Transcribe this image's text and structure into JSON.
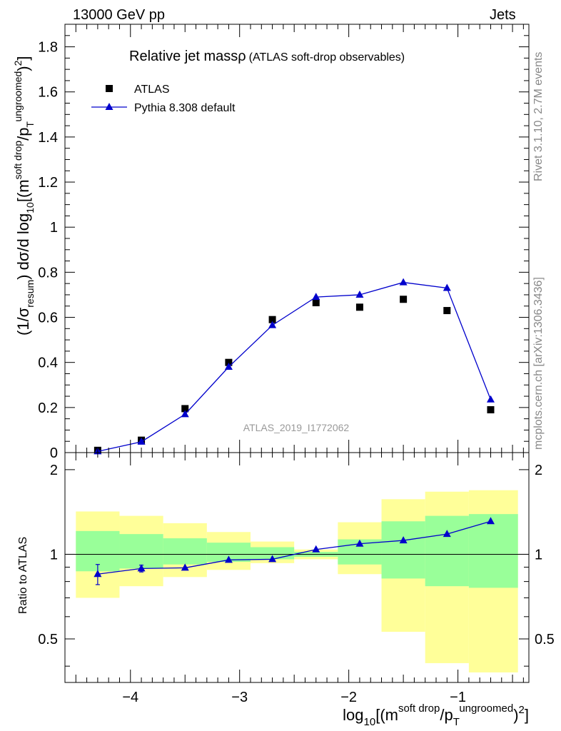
{
  "header": {
    "left": "13000 GeV pp",
    "right": "Jets"
  },
  "side_text": {
    "rivet": "Rivet 3.1.10,  2.7M events",
    "source": "mcplots.cern.ch [arXiv:1306.3436]"
  },
  "chart_data": [
    {
      "type": "line",
      "title": "Relative jet mass",
      "title_symbol": "ρ",
      "subtitle": "(ATLAS soft-drop observables)",
      "watermark": "ATLAS_2019_I1772062",
      "xlabel": "log10[(m^soft drop/p_T^ungroomed)^2]",
      "ylabel": "(1/σ_resum) dσ/d log10[(m^soft drop/p_T^ungroomed)^2]",
      "xlim": [
        -4.6,
        -0.35
      ],
      "ylim": [
        0,
        1.9
      ],
      "y_ticks": [
        0,
        0.2,
        0.4,
        0.6,
        0.8,
        1,
        1.2,
        1.4,
        1.6,
        1.8
      ],
      "y_tick_labels": [
        "0",
        "0.2",
        "0.4",
        "0.6",
        "0.8",
        "1",
        "1.2",
        "1.4",
        "1.6",
        "1.8"
      ],
      "legend_position": "top-left",
      "series": [
        {
          "name": "ATLAS",
          "marker": "square",
          "color": "#000000",
          "x": [
            -4.3,
            -3.9,
            -3.5,
            -3.1,
            -2.7,
            -2.3,
            -1.9,
            -1.5,
            -1.1,
            -0.7
          ],
          "y": [
            0.01,
            0.055,
            0.195,
            0.4,
            0.59,
            0.665,
            0.645,
            0.68,
            0.63,
            0.19
          ]
        },
        {
          "name": "Pythia 8.308 default",
          "marker": "triangle",
          "color": "#0000cc",
          "x": [
            -4.3,
            -3.9,
            -3.5,
            -3.1,
            -2.7,
            -2.3,
            -1.9,
            -1.5,
            -1.1,
            -0.7
          ],
          "y": [
            0.005,
            0.048,
            0.17,
            0.38,
            0.565,
            0.69,
            0.7,
            0.755,
            0.73,
            0.235
          ]
        }
      ]
    },
    {
      "type": "line",
      "ylabel": "Ratio to ATLAS",
      "xlabel": "log10[(m^soft drop/p_T^ungroomed)^2]",
      "xlim": [
        -4.6,
        -0.35
      ],
      "ylim": [
        0.35,
        2.3
      ],
      "y_ticks": [
        0.5,
        1,
        2
      ],
      "y_tick_labels": [
        "0.5",
        "1",
        "2"
      ],
      "x_ticks": [
        -4,
        -3,
        -2,
        -1
      ],
      "x_tick_labels": [
        "−4",
        "−3",
        "−2",
        "−1"
      ],
      "reference_line": 1,
      "bin_edges": [
        -4.5,
        -4.1,
        -3.7,
        -3.3,
        -2.9,
        -2.5,
        -2.1,
        -1.7,
        -1.3,
        -0.9,
        -0.45
      ],
      "band_outer": {
        "color": "#ffff99",
        "lower": [
          0.7,
          0.77,
          0.83,
          0.88,
          0.93,
          0.96,
          0.85,
          0.53,
          0.41,
          0.38
        ],
        "upper": [
          1.42,
          1.37,
          1.29,
          1.2,
          1.11,
          1.04,
          1.3,
          1.57,
          1.67,
          1.69
        ]
      },
      "band_inner": {
        "color": "#99ff99",
        "lower": [
          0.87,
          0.89,
          0.92,
          0.94,
          0.96,
          0.98,
          0.92,
          0.82,
          0.77,
          0.76
        ],
        "upper": [
          1.21,
          1.18,
          1.14,
          1.1,
          1.06,
          1.02,
          1.13,
          1.31,
          1.37,
          1.39
        ]
      },
      "series": [
        {
          "name": "Pythia 8.308 default",
          "marker": "triangle",
          "color": "#0000cc",
          "x": [
            -4.3,
            -3.9,
            -3.5,
            -3.1,
            -2.7,
            -2.3,
            -1.9,
            -1.5,
            -1.1,
            -0.7
          ],
          "y": [
            0.85,
            0.89,
            0.895,
            0.955,
            0.96,
            1.04,
            1.09,
            1.12,
            1.18,
            1.31
          ],
          "err_low": [
            0.07,
            0.025,
            0,
            0,
            0,
            0,
            0,
            0,
            0,
            0
          ],
          "err_high": [
            0.07,
            0.025,
            0,
            0,
            0,
            0,
            0,
            0,
            0,
            0
          ]
        }
      ]
    }
  ]
}
